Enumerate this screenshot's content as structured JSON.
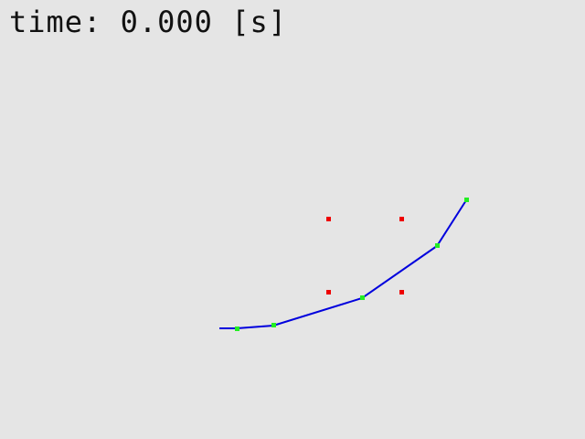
{
  "simulation": {
    "time_label": "time: 0.000 [s]"
  },
  "colors": {
    "background": "#e5e5e5",
    "chain_line": "#0000dd",
    "joint_marker": "#22ee22",
    "target_marker": "#ee0000"
  }
}
